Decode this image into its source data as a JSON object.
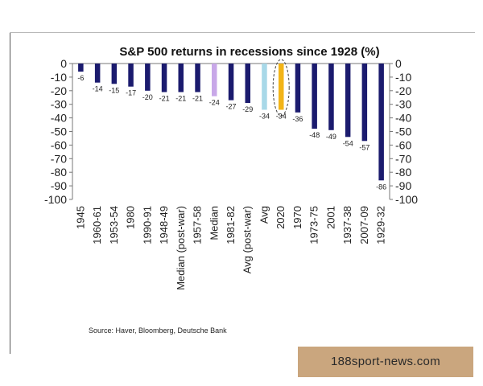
{
  "chart_data": {
    "type": "bar",
    "title": "S&P 500 returns in recessions since 1928 (%)",
    "categories": [
      "1945",
      "1960-61",
      "1953-54",
      "1980",
      "1990-91",
      "1948-49",
      "Median (post-war)",
      "1957-58",
      "Median",
      "1981-82",
      "Avg (post-war)",
      "Avg",
      "2020",
      "1970",
      "1973-75",
      "2001",
      "1937-38",
      "2007-09",
      "1929-32"
    ],
    "values": [
      -6,
      -14,
      -15,
      -17,
      -20,
      -21,
      -21,
      -21,
      -24,
      -27,
      -29,
      -34,
      -34,
      -36,
      -48,
      -49,
      -54,
      -57,
      -86
    ],
    "data_labels": [
      "-6",
      "-14",
      "-15",
      "-17",
      "-20",
      "-21",
      "-21",
      "-21",
      "-24",
      "-27",
      "-29",
      "-34",
      "-34",
      "-36",
      "-48",
      "-49",
      "-54",
      "-57",
      "-86"
    ],
    "bar_colors": [
      "#1b1b6e",
      "#1b1b6e",
      "#1b1b6e",
      "#1b1b6e",
      "#1b1b6e",
      "#1b1b6e",
      "#1b1b6e",
      "#1b1b6e",
      "#c8a8e8",
      "#1b1b6e",
      "#1b1b6e",
      "#a8d8e8",
      "#f2b418",
      "#1b1b6e",
      "#1b1b6e",
      "#1b1b6e",
      "#1b1b6e",
      "#1b1b6e",
      "#1b1b6e"
    ],
    "highlight_category": "2020",
    "ylim": [
      -100,
      0
    ],
    "yticks": [
      "0",
      "-10",
      "-20",
      "-30",
      "-40",
      "-50",
      "-60",
      "-70",
      "-80",
      "-90",
      "-100"
    ],
    "xlabel": "",
    "ylabel": "",
    "grid": false
  },
  "source": "Source: Haver, Bloomberg, Deutsche Bank",
  "watermark": "188sport-news.com"
}
